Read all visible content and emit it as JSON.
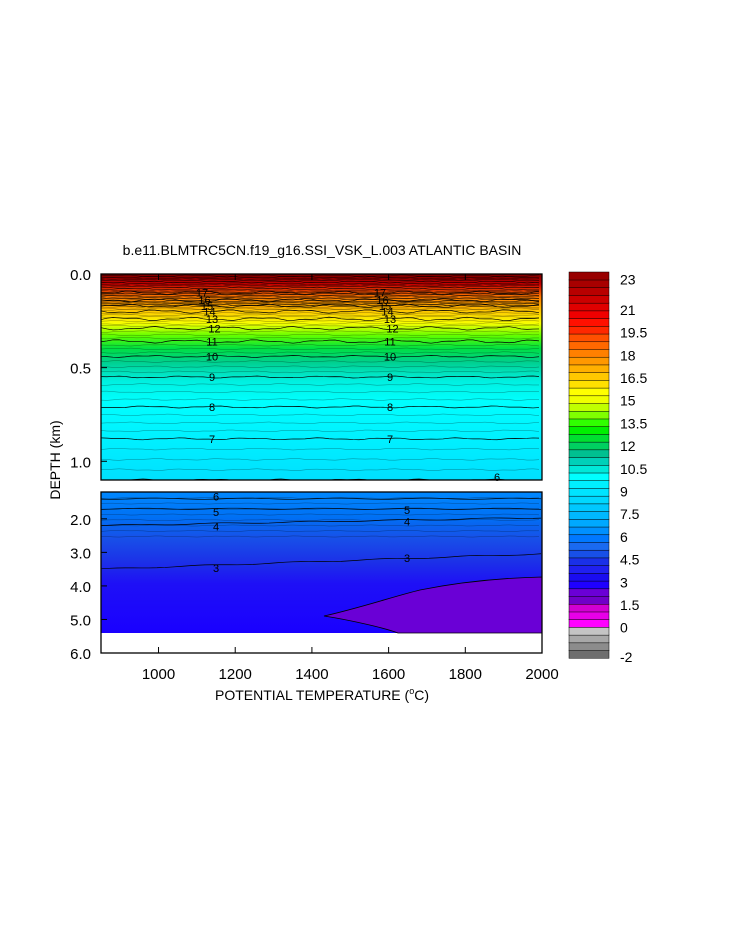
{
  "chart_data": {
    "type": "heatmap",
    "title": "b.e11.BLMTRC5CN.f19_g16.SSI_VSK_L.003 ATLANTIC BASIN",
    "xlabel_main": "POTENTIAL TEMPERATURE (",
    "xlabel_sup": "o",
    "xlabel_tail": "C)",
    "ylabel": "DEPTH (km)",
    "x_ticks": [
      "1000",
      "1200",
      "1400",
      "1600",
      "1800",
      "2000"
    ],
    "x_tick_values": [
      1000,
      1200,
      1400,
      1600,
      1800,
      2000
    ],
    "xlim": [
      850,
      2000
    ],
    "upper_panel": {
      "ylim": [
        0.0,
        1.1
      ],
      "y_ticks": [
        "0.0",
        "0.5",
        "1.0"
      ],
      "y_tick_values": [
        0.0,
        0.5,
        1.0
      ],
      "contours": [
        {
          "level": 17,
          "depth": 0.1
        },
        {
          "level": 16,
          "depth": 0.14
        },
        {
          "level": 15,
          "depth": 0.17
        },
        {
          "level": 14,
          "depth": 0.2
        },
        {
          "level": 13,
          "depth": 0.24
        },
        {
          "level": 12,
          "depth": 0.29
        },
        {
          "level": 11,
          "depth": 0.36
        },
        {
          "level": 10,
          "depth": 0.44
        },
        {
          "level": 9,
          "depth": 0.55
        },
        {
          "level": 8,
          "depth": 0.71
        },
        {
          "level": 7,
          "depth": 0.88
        },
        {
          "level": 6,
          "depth": 1.1
        }
      ]
    },
    "lower_panel": {
      "ylim": [
        1.2,
        6.0
      ],
      "y_ticks": [
        "2.0",
        "3.0",
        "4.0",
        "5.0",
        "6.0"
      ],
      "y_tick_values": [
        2.0,
        3.0,
        4.0,
        5.0,
        6.0
      ],
      "bottom_depth": 5.3,
      "contours": [
        {
          "level": 6,
          "depth": 1.4
        },
        {
          "level": 5,
          "depth": 1.7
        },
        {
          "level": 4,
          "depth": 2.2
        },
        {
          "level": 3,
          "depth": 3.5
        }
      ]
    },
    "colorbar": {
      "labels": [
        "23",
        "21",
        "19.5",
        "18",
        "16.5",
        "15",
        "13.5",
        "12",
        "10.5",
        "9",
        "7.5",
        "6",
        "4.5",
        "3",
        "1.5",
        "0",
        "-2"
      ],
      "label_values": [
        23,
        21,
        19.5,
        18,
        16.5,
        15,
        13.5,
        12,
        10.5,
        9,
        7.5,
        6,
        4.5,
        3,
        1.5,
        0,
        -2
      ],
      "colors": [
        "#6e6e6e",
        "#8c8c8c",
        "#a8a8a8",
        "#c4c4c4",
        "#ff00ff",
        "#e800e8",
        "#d200d2",
        "#7000c8",
        "#6a00d6",
        "#1f00ff",
        "#1a0cf0",
        "#2020f0",
        "#1a30e8",
        "#1850e8",
        "#1a6af0",
        "#0078ff",
        "#0090ff",
        "#00a8ff",
        "#00b8ff",
        "#00c8ff",
        "#00d8ff",
        "#00e4ff",
        "#00f0ff",
        "#00ffff",
        "#00e8d8",
        "#00d0b8",
        "#00c090",
        "#00d060",
        "#00e030",
        "#00f000",
        "#30ff00",
        "#80ff00",
        "#c0ff00",
        "#f0ff00",
        "#ffff00",
        "#ffe000",
        "#ffc800",
        "#ffb000",
        "#ff9800",
        "#ff8000",
        "#ff6800",
        "#ff5000",
        "#ff2800",
        "#ff1000",
        "#f00000",
        "#e00000",
        "#cc0000",
        "#b80000",
        "#a80000",
        "#980000"
      ]
    }
  }
}
